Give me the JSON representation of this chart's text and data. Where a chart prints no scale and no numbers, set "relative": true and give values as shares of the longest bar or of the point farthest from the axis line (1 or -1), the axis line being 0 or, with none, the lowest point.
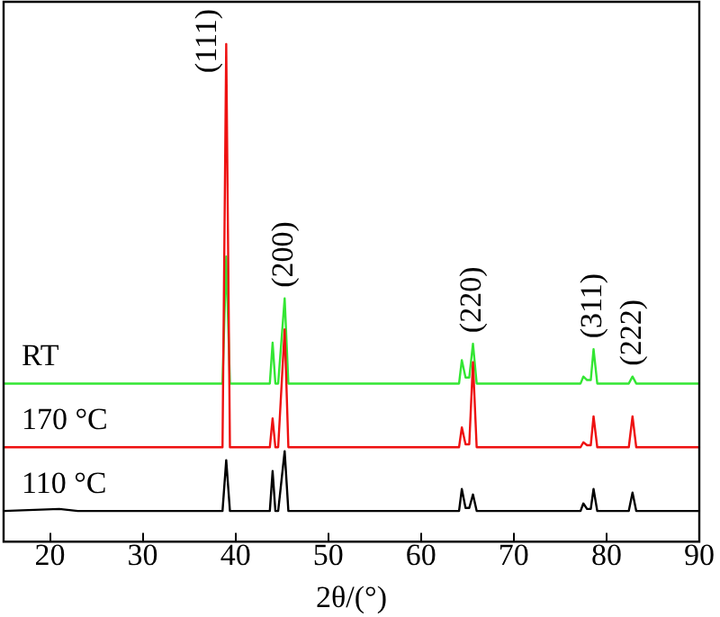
{
  "chart_data": {
    "type": "line",
    "relative": true,
    "xlabel": "2θ/(°)",
    "xlim": [
      15,
      90
    ],
    "xticks": [
      20,
      30,
      40,
      50,
      60,
      70,
      80,
      90
    ],
    "grid": false,
    "legend": false,
    "marker": "none",
    "line_style": "solid",
    "x": [
      15,
      21,
      23,
      38.6,
      39.0,
      39.4,
      43.7,
      44.0,
      44.3,
      44.6,
      45.3,
      45.7,
      64.1,
      64.4,
      64.8,
      65.2,
      65.6,
      66.0,
      77.2,
      77.5,
      77.9,
      78.3,
      78.6,
      79.0,
      82.4,
      82.8,
      83.2,
      90
    ],
    "series": [
      {
        "name": "110 °C",
        "color": "#000000",
        "values": [
          0.062,
          0.066,
          0.062,
          0.062,
          0.164,
          0.062,
          0.062,
          0.142,
          0.062,
          0.062,
          0.182,
          0.062,
          0.062,
          0.106,
          0.068,
          0.068,
          0.095,
          0.062,
          0.062,
          0.077,
          0.066,
          0.066,
          0.106,
          0.062,
          0.062,
          0.099,
          0.062,
          0.062
        ]
      },
      {
        "name": "170 °C",
        "color": "#ee1111",
        "values": [
          0.19,
          0.19,
          0.19,
          0.19,
          1.0,
          0.19,
          0.19,
          0.248,
          0.19,
          0.19,
          0.427,
          0.19,
          0.19,
          0.23,
          0.196,
          0.196,
          0.361,
          0.19,
          0.19,
          0.2,
          0.194,
          0.194,
          0.252,
          0.19,
          0.19,
          0.252,
          0.19,
          0.19
        ]
      },
      {
        "name": "RT",
        "color": "#33e633",
        "values": [
          0.318,
          0.318,
          0.318,
          0.318,
          0.573,
          0.318,
          0.318,
          0.4,
          0.318,
          0.318,
          0.489,
          0.318,
          0.318,
          0.365,
          0.33,
          0.33,
          0.398,
          0.318,
          0.318,
          0.332,
          0.325,
          0.325,
          0.387,
          0.318,
          0.318,
          0.332,
          0.318,
          0.318
        ]
      }
    ],
    "annotations": [
      {
        "text": "(111)",
        "x": 39.0,
        "y": 1.0
      },
      {
        "text": "(200)",
        "x": 45.3,
        "y": 0.489
      },
      {
        "text": "(220)",
        "x": 65.6,
        "y": 0.398
      },
      {
        "text": "(311)",
        "x": 78.6,
        "y": 0.387
      },
      {
        "text": "(222)",
        "x": 82.8,
        "y": 0.332
      }
    ]
  }
}
